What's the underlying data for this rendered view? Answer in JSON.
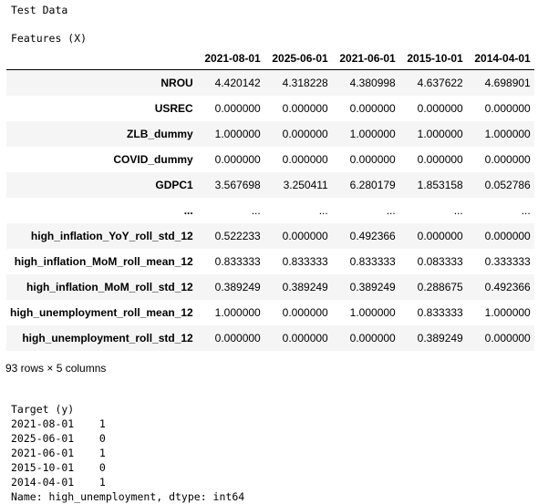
{
  "title": "Test Data",
  "features_label": "Features (X)",
  "table": {
    "columns": [
      "2021-08-01",
      "2025-06-01",
      "2021-06-01",
      "2015-10-01",
      "2014-04-01"
    ],
    "rows": [
      {
        "index": "NROU",
        "values": [
          "4.420142",
          "4.318228",
          "4.380998",
          "4.637622",
          "4.698901"
        ]
      },
      {
        "index": "USREC",
        "values": [
          "0.000000",
          "0.000000",
          "0.000000",
          "0.000000",
          "0.000000"
        ]
      },
      {
        "index": "ZLB_dummy",
        "values": [
          "1.000000",
          "0.000000",
          "1.000000",
          "1.000000",
          "1.000000"
        ]
      },
      {
        "index": "COVID_dummy",
        "values": [
          "0.000000",
          "0.000000",
          "0.000000",
          "0.000000",
          "0.000000"
        ]
      },
      {
        "index": "GDPC1",
        "values": [
          "3.567698",
          "3.250411",
          "6.280179",
          "1.853158",
          "0.052786"
        ]
      },
      {
        "index": "...",
        "values": [
          "...",
          "...",
          "...",
          "...",
          "..."
        ]
      },
      {
        "index": "high_inflation_YoY_roll_std_12",
        "values": [
          "0.522233",
          "0.000000",
          "0.492366",
          "0.000000",
          "0.000000"
        ]
      },
      {
        "index": "high_inflation_MoM_roll_mean_12",
        "values": [
          "0.833333",
          "0.833333",
          "0.833333",
          "0.083333",
          "0.333333"
        ]
      },
      {
        "index": "high_inflation_MoM_roll_std_12",
        "values": [
          "0.389249",
          "0.389249",
          "0.389249",
          "0.288675",
          "0.492366"
        ]
      },
      {
        "index": "high_unemployment_roll_mean_12",
        "values": [
          "1.000000",
          "0.000000",
          "1.000000",
          "0.833333",
          "1.000000"
        ]
      },
      {
        "index": "high_unemployment_roll_std_12",
        "values": [
          "0.000000",
          "0.000000",
          "0.000000",
          "0.389249",
          "0.000000"
        ]
      }
    ]
  },
  "shape_note": "93 rows × 5 columns",
  "target": {
    "header": "Target (y)",
    "lines": [
      "2021-08-01    1",
      "2025-06-01    0",
      "2021-06-01    1",
      "2015-10-01    0",
      "2014-04-01    1"
    ],
    "footer": "Name: high_unemployment, dtype: int64"
  }
}
